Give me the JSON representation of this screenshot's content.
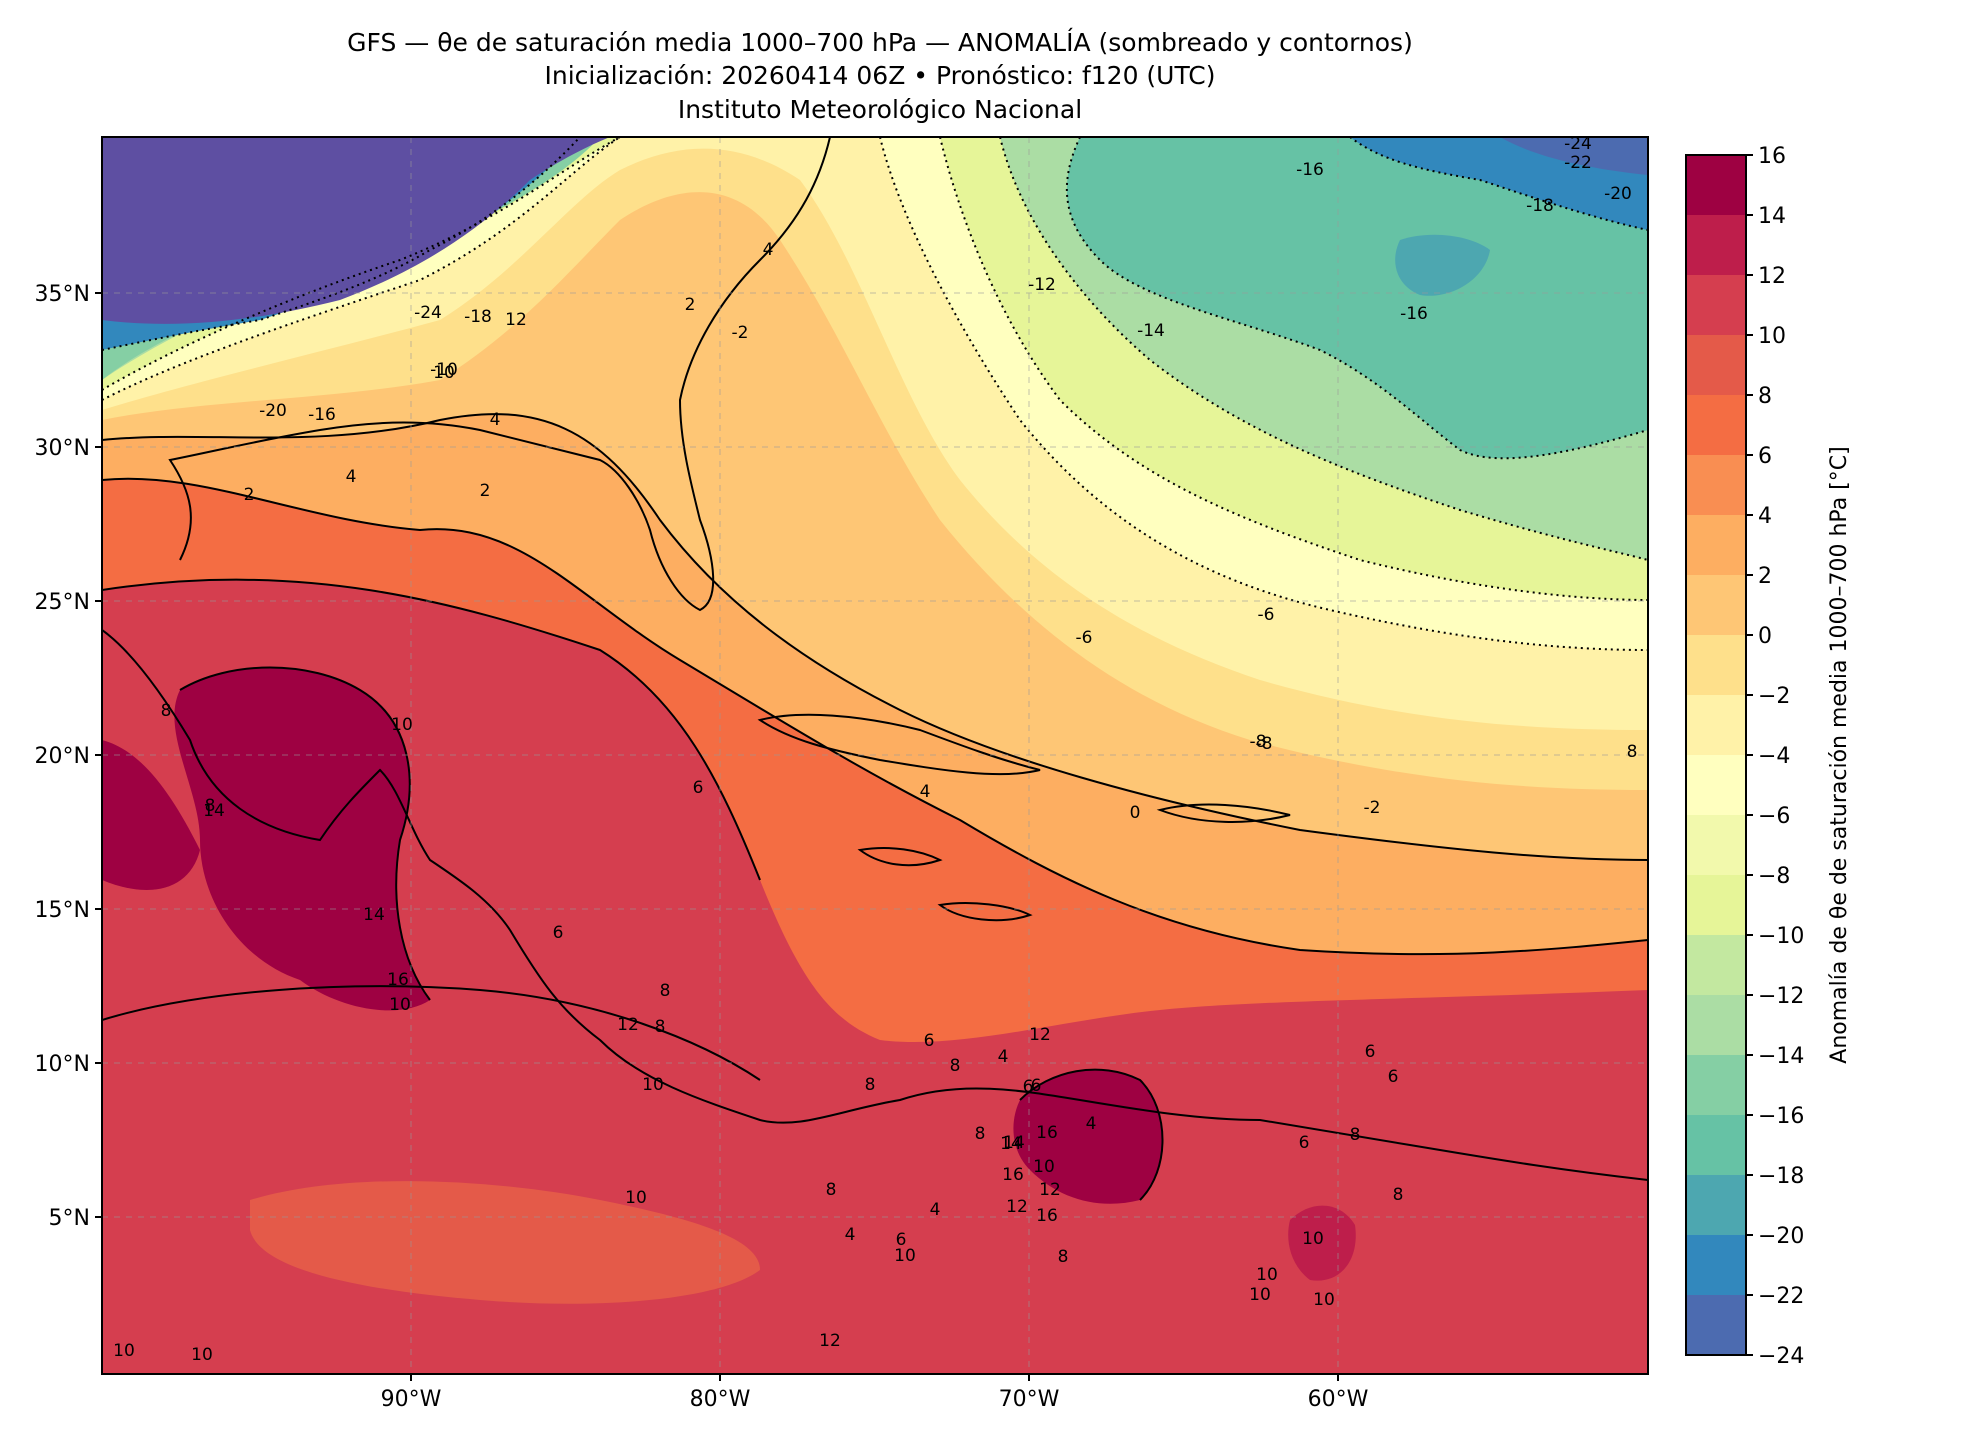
{
  "title": {
    "line1": "GFS — θe de saturación media 1000–700 hPa — ANOMALÍA (sombreado y contornos)",
    "line2": "Inicialización: 20260414 06Z   •   Pronóstico: f120 (UTC)",
    "line3": "Instituto Meteorológico Nacional"
  },
  "axes": {
    "lon_ticks": [
      "90°W",
      "80°W",
      "70°W",
      "60°W"
    ],
    "lat_ticks": [
      "35°N",
      "30°N",
      "25°N",
      "20°N",
      "15°N",
      "10°N",
      "5°N"
    ]
  },
  "colorbar": {
    "label": "Anomalía de θe de saturación media 1000–700 hPa [°C]",
    "ticks": [
      "16",
      "14",
      "12",
      "10",
      "8",
      "6",
      "4",
      "2",
      "0",
      "−2",
      "−4",
      "−6",
      "−8",
      "−10",
      "−12",
      "−14",
      "−16",
      "−18",
      "−20",
      "−22",
      "−24"
    ],
    "colors": [
      "#9e0142",
      "#be1e4b",
      "#d53e4f",
      "#e45a49",
      "#f46d43",
      "#f98e52",
      "#fdae61",
      "#fec675",
      "#fee08b",
      "#fff2a8",
      "#ffffbf",
      "#f2f9ac",
      "#e6f598",
      "#c3e8a0",
      "#abdda4",
      "#85cfa4",
      "#66c2a5",
      "#4da7b0",
      "#3288bd",
      "#4c6bb0",
      "#5e4fa2"
    ]
  },
  "contour_labels": [
    "-24",
    "-22",
    "-20",
    "-18",
    "-16",
    "-16",
    "-14",
    "-12",
    "-20",
    "-16",
    "-24",
    "-18",
    "12",
    "-10",
    "10",
    "-2",
    "4",
    "2",
    "4",
    "2",
    "2",
    "4",
    "-6",
    "-8",
    "-6",
    "-2",
    "0",
    "4",
    "8",
    "8",
    "10",
    "12",
    "16",
    "16",
    "14",
    "12",
    "14",
    "16",
    "14",
    "10",
    "10",
    "12",
    "12",
    "10",
    "6",
    "6",
    "8",
    "8",
    "10",
    "8",
    "6",
    "4",
    "6",
    "8",
    "6",
    "6",
    "4",
    "14",
    "16",
    "10",
    "8",
    "10",
    "12",
    "10",
    "10",
    "8",
    "4",
    "6",
    "8",
    "4",
    "6",
    "8",
    "8",
    "10",
    "10",
    "6",
    "-8",
    "8",
    "10"
  ]
}
